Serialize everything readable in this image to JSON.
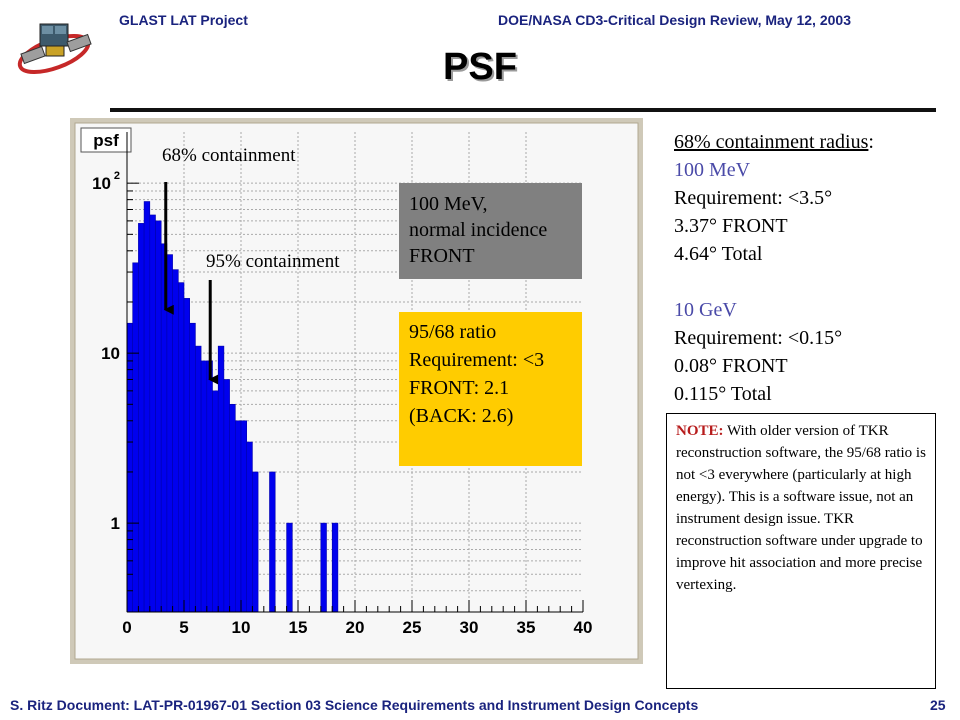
{
  "header": {
    "left": "GLAST LAT Project",
    "right": "DOE/NASA CD3-Critical Design Review, May 12, 2003"
  },
  "title": "PSF",
  "footer": {
    "text": "S. Ritz Document: LAT-PR-01967-01 Section 03 Science Requirements and Instrument Design Concepts",
    "page": "25"
  },
  "plot": {
    "label": "psf",
    "annotation_68": "68% containment",
    "annotation_95": "95% containment",
    "grey_box": [
      "100 MeV,",
      "normal incidence",
      "FRONT"
    ],
    "yellow_box": [
      "95/68 ratio",
      "Requirement: <3",
      "FRONT: 2.1",
      "(BACK: 2.6)"
    ]
  },
  "chart_data": {
    "type": "bar",
    "title": "psf",
    "xlabel": "",
    "ylabel": "",
    "x_scale": "linear",
    "y_scale": "log",
    "xlim": [
      0,
      40
    ],
    "ylim": [
      0.3,
      200
    ],
    "x_ticks": [
      "0",
      "5",
      "10",
      "15",
      "20",
      "25",
      "30",
      "35",
      "40"
    ],
    "y_ticks": [
      {
        "value": 100,
        "label_base": "10",
        "label_exp": "2"
      },
      {
        "value": 10,
        "label_base": "10",
        "label_exp": ""
      },
      {
        "value": 1,
        "label_base": "1",
        "label_exp": ""
      }
    ],
    "bin_width": 0.5,
    "bin_starts": [
      0,
      0.5,
      1,
      1.5,
      2,
      2.5,
      3,
      3.5,
      4,
      4.5,
      5,
      5.5,
      6,
      6.5,
      7,
      7.5,
      8,
      8.5,
      9,
      9.5,
      10,
      10.5,
      11,
      11.5,
      12,
      12.5,
      13,
      13.5,
      14,
      14.5,
      15,
      15.5,
      16,
      16.5,
      17,
      17.5,
      18
    ],
    "counts": [
      15,
      34,
      58,
      78,
      65,
      60,
      44,
      38,
      31,
      26,
      21,
      15,
      11,
      9,
      9,
      6,
      11,
      7,
      5,
      4,
      4,
      3,
      2,
      0,
      0,
      2,
      0,
      0,
      1,
      0,
      0,
      0,
      0,
      0,
      1,
      0,
      1
    ],
    "vlines": [
      {
        "x": 3.4,
        "label": "68% containment"
      },
      {
        "x": 7.3,
        "label": "95% containment"
      }
    ],
    "grid": true,
    "bar_color": "#0000ee",
    "frame_color": "#f7f7f7"
  },
  "right_info": {
    "heading": "68% containment radius",
    "heading_suffix": ":",
    "lines_100mev": [
      "Requirement: <3.5°",
      "3.37° FRONT",
      "4.64° Total"
    ],
    "energy_100mev": "100 MeV",
    "energy_10gev": "10 GeV",
    "lines_10gev": [
      "Requirement: <0.15°",
      "0.08° FRONT",
      "0.115° Total"
    ]
  },
  "note": {
    "label": "NOTE:",
    "text": " With older version of TKR reconstruction software, the 95/68 ratio is not <3 everywhere (particularly at high energy). This is a software issue, not an instrument design issue. TKR reconstruction software under upgrade to improve hit association and more precise vertexing."
  }
}
